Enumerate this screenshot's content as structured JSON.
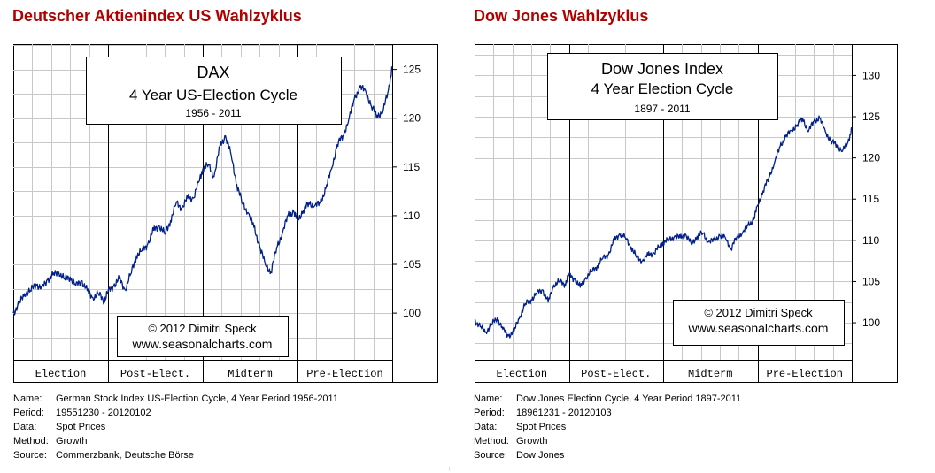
{
  "left": {
    "heading": "Deutscher Aktienindex US Wahlzyklus",
    "box_title": "DAX",
    "box_subtitle": "4 Year US-Election Cycle",
    "box_range": "1956 - 2011",
    "copyright_line1": "© 2012  Dimitri Speck",
    "copyright_line2": "www.seasonalcharts.com",
    "info": {
      "name_label": "Name:",
      "name": "German Stock Index US-Election Cycle, 4 Year Period 1956-2011",
      "period_label": "Period:",
      "period": "19551230 - 20120102",
      "data_label": "Data:",
      "data": "Spot Prices",
      "method_label": "Method:",
      "method": "Growth",
      "source_label": "Source:",
      "source": "Commerzbank, Deutsche Börse"
    }
  },
  "right": {
    "heading": "Dow Jones Wahlzyklus",
    "box_title": "Dow Jones Index",
    "box_subtitle": "4 Year Election Cycle",
    "box_range": "1897 - 2011",
    "copyright_line1": "© 2012  Dimitri Speck",
    "copyright_line2": "www.seasonalcharts.com",
    "info": {
      "name_label": "Name:",
      "name": "Dow Jones Election Cycle, 4 Year Period 1897-2011",
      "period_label": "Period:",
      "period": "18961231 - 20120103",
      "data_label": "Data:",
      "data": "Spot Prices",
      "method_label": "Method:",
      "method": "Growth",
      "source_label": "Source:",
      "source": "Dow Jones"
    }
  },
  "colors": {
    "heading": "#b00000",
    "line": "#00208a",
    "grid": "#c8c8c8",
    "frame": "#000000"
  },
  "chart_data": [
    {
      "type": "line",
      "title": "DAX 4 Year US-Election Cycle",
      "subtitle": "1956 - 2011",
      "xlabel": "",
      "ylabel": "",
      "x_categories": [
        "Election",
        "Post-Elect.",
        "Midterm",
        "Pre-Election"
      ],
      "xlim": [
        0,
        4
      ],
      "ylim": [
        95.2,
        127.6
      ],
      "y_ticks": [
        100,
        105,
        110,
        115,
        120,
        125
      ],
      "grid": true,
      "series": [
        {
          "name": "DAX",
          "x": [
            0,
            0.06,
            0.12,
            0.18,
            0.24,
            0.3,
            0.36,
            0.42,
            0.48,
            0.54,
            0.6,
            0.66,
            0.72,
            0.78,
            0.84,
            0.9,
            0.96,
            1.0,
            1.06,
            1.12,
            1.18,
            1.24,
            1.3,
            1.36,
            1.42,
            1.48,
            1.54,
            1.6,
            1.66,
            1.72,
            1.78,
            1.84,
            1.9,
            1.96,
            2.0,
            2.06,
            2.12,
            2.18,
            2.24,
            2.3,
            2.36,
            2.42,
            2.48,
            2.54,
            2.6,
            2.66,
            2.72,
            2.78,
            2.84,
            2.9,
            2.96,
            3.0,
            3.06,
            3.12,
            3.18,
            3.24,
            3.3,
            3.36,
            3.42,
            3.48,
            3.54,
            3.6,
            3.66,
            3.72,
            3.78,
            3.84,
            3.9,
            3.96,
            4.0
          ],
          "values": [
            100.0,
            100.9,
            102.0,
            102.3,
            103.0,
            102.5,
            103.4,
            103.9,
            104.2,
            103.5,
            103.7,
            102.8,
            103.3,
            102.3,
            101.6,
            102.0,
            101.3,
            102.2,
            102.8,
            103.5,
            102.4,
            104.0,
            105.9,
            106.4,
            107.1,
            108.5,
            109.0,
            108.1,
            109.5,
            111.3,
            110.8,
            111.8,
            111.8,
            113.5,
            114.8,
            115.2,
            114.0,
            117.1,
            118.2,
            116.2,
            113.2,
            111.2,
            110.3,
            108.8,
            106.9,
            105.0,
            104.2,
            106.7,
            108.2,
            110.0,
            110.4,
            109.5,
            110.5,
            111.3,
            111.0,
            111.3,
            112.8,
            114.8,
            117.3,
            118.2,
            119.8,
            122.0,
            123.2,
            122.8,
            121.2,
            120.3,
            120.6,
            122.9,
            125.2
          ]
        }
      ]
    },
    {
      "type": "line",
      "title": "Dow Jones Index 4 Year Election Cycle",
      "subtitle": "1897 - 2011",
      "xlabel": "",
      "ylabel": "",
      "x_categories": [
        "Election",
        "Post-Elect.",
        "Midterm",
        "Pre-Election"
      ],
      "xlim": [
        0,
        4
      ],
      "ylim": [
        95.5,
        133.8
      ],
      "y_ticks": [
        100,
        105,
        110,
        115,
        120,
        125,
        130
      ],
      "grid": true,
      "series": [
        {
          "name": "Dow Jones",
          "x": [
            0,
            0.06,
            0.12,
            0.18,
            0.24,
            0.3,
            0.36,
            0.42,
            0.48,
            0.54,
            0.6,
            0.66,
            0.72,
            0.78,
            0.84,
            0.9,
            0.96,
            1.0,
            1.06,
            1.12,
            1.18,
            1.24,
            1.3,
            1.36,
            1.42,
            1.48,
            1.54,
            1.6,
            1.66,
            1.72,
            1.78,
            1.84,
            1.9,
            1.96,
            2.0,
            2.06,
            2.12,
            2.18,
            2.24,
            2.3,
            2.36,
            2.42,
            2.48,
            2.54,
            2.6,
            2.66,
            2.72,
            2.78,
            2.84,
            2.9,
            2.96,
            3.0,
            3.06,
            3.12,
            3.18,
            3.24,
            3.3,
            3.36,
            3.42,
            3.48,
            3.54,
            3.6,
            3.66,
            3.72,
            3.78,
            3.84,
            3.9,
            3.96,
            4.0
          ],
          "values": [
            100.3,
            99.5,
            98.9,
            99.8,
            100.6,
            99.2,
            98.4,
            99.0,
            100.8,
            102.3,
            102.8,
            103.6,
            104.0,
            102.5,
            104.6,
            105.0,
            104.7,
            105.8,
            105.3,
            104.3,
            105.5,
            106.2,
            106.9,
            107.8,
            108.3,
            110.0,
            110.8,
            110.3,
            109.2,
            107.9,
            107.5,
            108.2,
            108.5,
            109.2,
            109.8,
            110.0,
            110.5,
            110.3,
            110.7,
            109.5,
            110.5,
            110.9,
            109.8,
            110.0,
            110.6,
            110.3,
            109.0,
            110.4,
            110.9,
            111.8,
            112.5,
            114.2,
            116.0,
            117.6,
            119.4,
            121.4,
            122.6,
            123.3,
            124.0,
            124.8,
            123.2,
            124.5,
            124.8,
            123.2,
            122.0,
            121.6,
            120.8,
            121.9,
            123.5
          ]
        }
      ]
    }
  ]
}
